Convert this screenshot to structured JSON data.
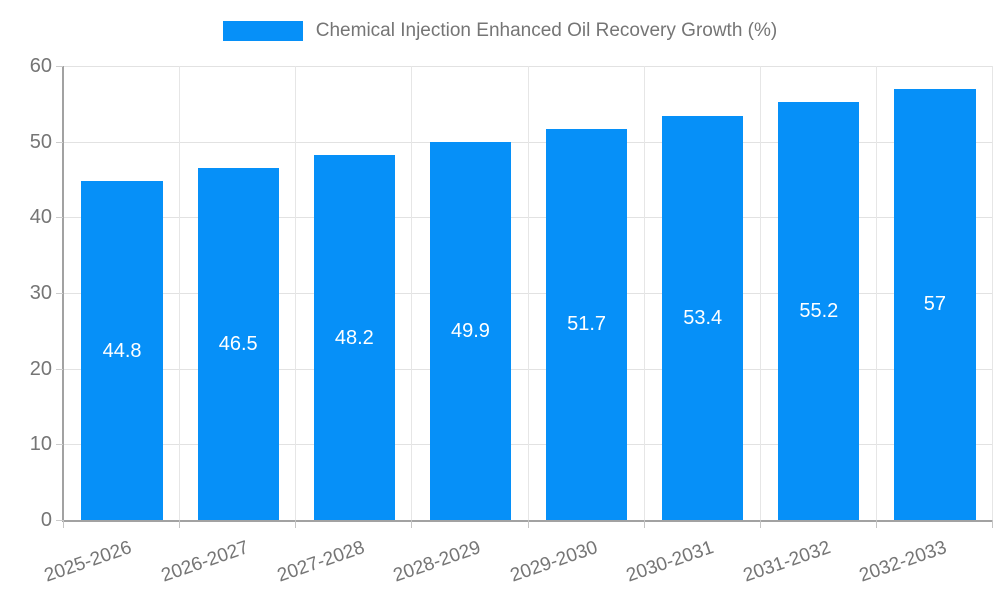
{
  "chart_data": {
    "type": "bar",
    "title": "Chemical Injection Enhanced Oil Recovery Growth (%)",
    "categories": [
      "2025-2026",
      "2026-2027",
      "2027-2028",
      "2028-2029",
      "2029-2030",
      "2030-2031",
      "2031-2032",
      "2032-2033"
    ],
    "values": [
      44.8,
      46.5,
      48.2,
      49.9,
      51.7,
      53.4,
      55.2,
      57
    ],
    "value_labels": [
      "44.8",
      "46.5",
      "48.2",
      "49.9",
      "51.7",
      "53.4",
      "55.2",
      "57"
    ],
    "xlabel": "",
    "ylabel": "",
    "ylim": [
      0,
      60
    ],
    "yticks": [
      0,
      10,
      20,
      30,
      40,
      50,
      60
    ],
    "grid": true,
    "legend_position": "top-center",
    "bar_color": "#0690f8",
    "axis_text_color": "#757575",
    "value_text_color": "#ffffff"
  }
}
